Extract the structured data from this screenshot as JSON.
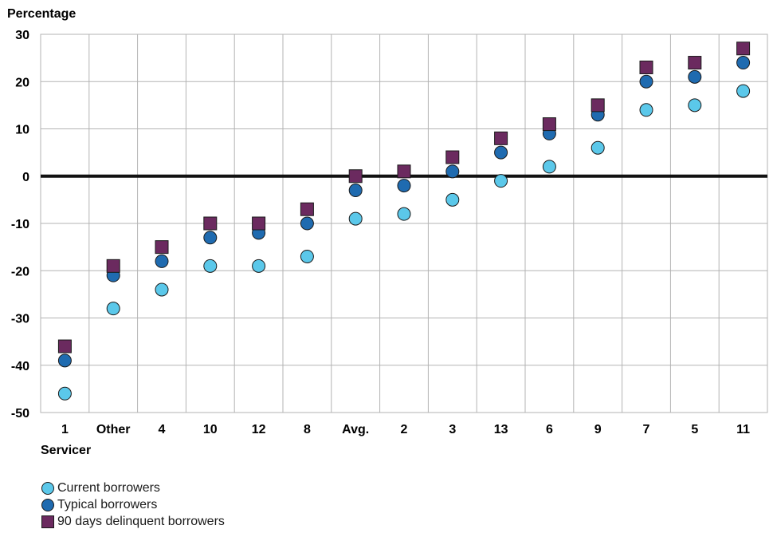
{
  "chart_data": {
    "type": "scatter",
    "ylabel": "Percentage",
    "xlabel": "Servicer",
    "categories": [
      "1",
      "Other",
      "4",
      "10",
      "12",
      "8",
      "Avg.",
      "2",
      "3",
      "13",
      "6",
      "9",
      "7",
      "5",
      "11"
    ],
    "ylim": [
      -50,
      30
    ],
    "yticks": [
      30,
      20,
      10,
      0,
      -10,
      -20,
      -30,
      -40,
      -50
    ],
    "grid": true,
    "legend_position": "bottom-left",
    "series": [
      {
        "name": "Current borrowers",
        "marker": "circle",
        "color": "#5bc8ea",
        "values": [
          -46,
          -28,
          -24,
          -19,
          -19,
          -17,
          -9,
          -8,
          -5,
          -1,
          2,
          6,
          14,
          15,
          18
        ]
      },
      {
        "name": "Typical borrowers",
        "marker": "circle",
        "color": "#1f6bb0",
        "values": [
          -39,
          -21,
          -18,
          -13,
          -12,
          -10,
          -3,
          -2,
          1,
          5,
          9,
          13,
          20,
          21,
          24
        ]
      },
      {
        "name": "90 days delinquent borrowers",
        "marker": "square",
        "color": "#6b2a5f",
        "values": [
          -36,
          -19,
          -15,
          -10,
          -10,
          -7,
          0,
          1,
          4,
          8,
          11,
          15,
          23,
          24,
          27
        ]
      }
    ]
  }
}
